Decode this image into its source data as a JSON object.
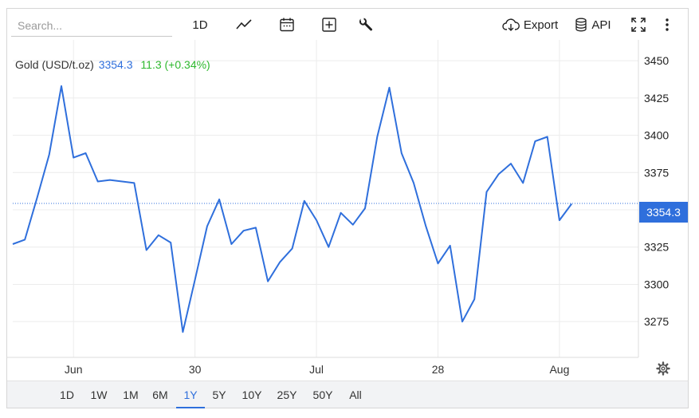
{
  "toolbar": {
    "search_placeholder": "Search...",
    "interval_label": "1D",
    "export_label": "Export",
    "api_label": "API"
  },
  "legend": {
    "symbol": "Gold (USD/t.oz)",
    "price": "3354.3",
    "change": "11.3 (+0.34%)"
  },
  "price_tag": "3354.3",
  "ranges": [
    "1D",
    "1W",
    "1M",
    "6M",
    "1Y",
    "5Y",
    "10Y",
    "25Y",
    "50Y",
    "All"
  ],
  "active_range": "1Y",
  "colors": {
    "line": "#2f6fdc",
    "positive": "#2eb82e",
    "grid": "#ececec"
  },
  "chart_data": {
    "type": "line",
    "series": [
      {
        "name": "Gold (USD/t.oz)",
        "values": [
          3327,
          3330,
          3358,
          3387,
          3433,
          3385,
          3388,
          3369,
          3370,
          3369,
          3368,
          3323,
          3333,
          3328,
          3268,
          3303,
          3339,
          3357,
          3327,
          3336,
          3338,
          3302,
          3315,
          3324,
          3356,
          3343,
          3325,
          3348,
          3340,
          3351,
          3399,
          3432,
          3388,
          3368,
          3339,
          3314,
          3326,
          3275,
          3290,
          3362,
          3374,
          3381,
          3368,
          3396,
          3399,
          3343,
          3354
        ]
      }
    ],
    "x_ticks": [
      {
        "label": "Jun",
        "index": 5
      },
      {
        "label": "30",
        "index": 15
      },
      {
        "label": "Jul",
        "index": 25
      },
      {
        "label": "28",
        "index": 35
      },
      {
        "label": "Aug",
        "index": 45
      }
    ],
    "y_ticks": [
      3275,
      3300,
      3325,
      3350,
      3375,
      3400,
      3425,
      3450
    ],
    "ylim": [
      3251,
      3464
    ],
    "x_domain": [
      0,
      51.5
    ],
    "last_value": 3354.3,
    "grid": true,
    "xlabel": "",
    "ylabel": ""
  }
}
